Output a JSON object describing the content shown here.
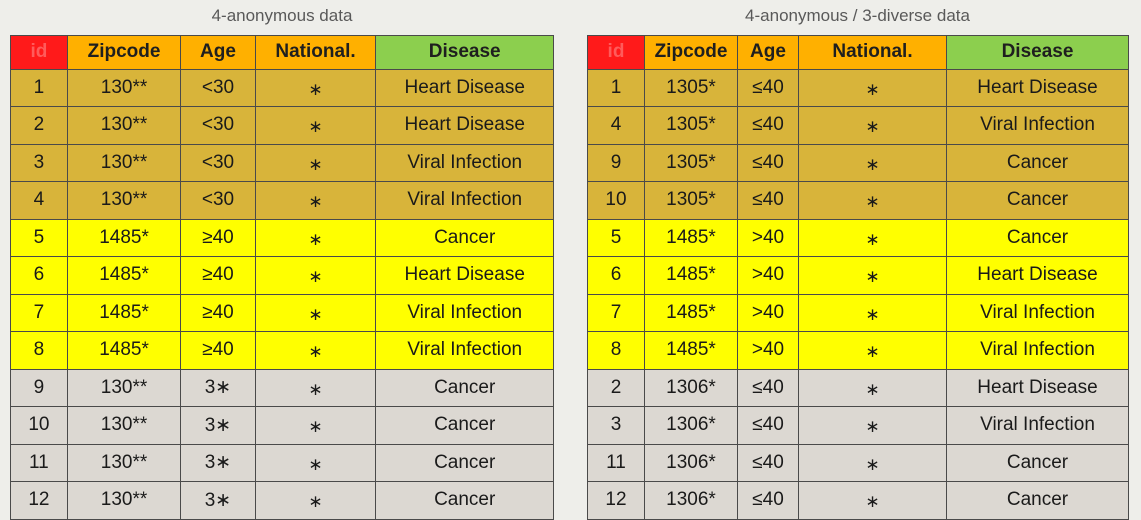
{
  "left_table": {
    "caption": "4-anonymous data",
    "headers": [
      "id",
      "Zipcode",
      "Age",
      "National.",
      "Disease"
    ],
    "rows": [
      {
        "group": "brown",
        "cells": [
          "1",
          "130**",
          "<30",
          "∗",
          "Heart Disease"
        ]
      },
      {
        "group": "brown",
        "cells": [
          "2",
          "130**",
          "<30",
          "∗",
          "Heart Disease"
        ]
      },
      {
        "group": "brown",
        "cells": [
          "3",
          "130**",
          "<30",
          "∗",
          "Viral Infection"
        ]
      },
      {
        "group": "brown",
        "cells": [
          "4",
          "130**",
          "<30",
          "∗",
          "Viral Infection"
        ]
      },
      {
        "group": "yellow",
        "cells": [
          "5",
          "1485*",
          "≥40",
          "∗",
          "Cancer"
        ]
      },
      {
        "group": "yellow",
        "cells": [
          "6",
          "1485*",
          "≥40",
          "∗",
          "Heart Disease"
        ]
      },
      {
        "group": "yellow",
        "cells": [
          "7",
          "1485*",
          "≥40",
          "∗",
          "Viral Infection"
        ]
      },
      {
        "group": "yellow",
        "cells": [
          "8",
          "1485*",
          "≥40",
          "∗",
          "Viral Infection"
        ]
      },
      {
        "group": "grey",
        "cells": [
          "9",
          "130**",
          "3∗",
          "∗",
          "Cancer"
        ]
      },
      {
        "group": "grey",
        "cells": [
          "10",
          "130**",
          "3∗",
          "∗",
          "Cancer"
        ]
      },
      {
        "group": "grey",
        "cells": [
          "11",
          "130**",
          "3∗",
          "∗",
          "Cancer"
        ]
      },
      {
        "group": "grey",
        "cells": [
          "12",
          "130**",
          "3∗",
          "∗",
          "Cancer"
        ]
      }
    ]
  },
  "right_table": {
    "caption": "4-anonymous / 3-diverse data",
    "headers": [
      "id",
      "Zipcode",
      "Age",
      "National.",
      "Disease"
    ],
    "rows": [
      {
        "group": "brown",
        "cells": [
          "1",
          "1305*",
          "≤40",
          "∗",
          "Heart Disease"
        ]
      },
      {
        "group": "brown",
        "cells": [
          "4",
          "1305*",
          "≤40",
          "∗",
          "Viral Infection"
        ]
      },
      {
        "group": "brown",
        "cells": [
          "9",
          "1305*",
          "≤40",
          "∗",
          "Cancer"
        ]
      },
      {
        "group": "brown",
        "cells": [
          "10",
          "1305*",
          "≤40",
          "∗",
          "Cancer"
        ]
      },
      {
        "group": "yellow",
        "cells": [
          "5",
          "1485*",
          ">40",
          "∗",
          "Cancer"
        ]
      },
      {
        "group": "yellow",
        "cells": [
          "6",
          "1485*",
          ">40",
          "∗",
          "Heart Disease"
        ]
      },
      {
        "group": "yellow",
        "cells": [
          "7",
          "1485*",
          ">40",
          "∗",
          "Viral Infection"
        ]
      },
      {
        "group": "yellow",
        "cells": [
          "8",
          "1485*",
          ">40",
          "∗",
          "Viral Infection"
        ]
      },
      {
        "group": "grey",
        "cells": [
          "2",
          "1306*",
          "≤40",
          "∗",
          "Heart Disease"
        ]
      },
      {
        "group": "grey",
        "cells": [
          "3",
          "1306*",
          "≤40",
          "∗",
          "Viral Infection"
        ]
      },
      {
        "group": "grey",
        "cells": [
          "11",
          "1306*",
          "≤40",
          "∗",
          "Cancer"
        ]
      },
      {
        "group": "grey",
        "cells": [
          "12",
          "1306*",
          "≤40",
          "∗",
          "Cancer"
        ]
      }
    ]
  },
  "colors": {
    "background": "#eeeeea",
    "header_id": "#ff1a1a",
    "header_mid": "#ffb000",
    "header_disease": "#8ccf4e",
    "group_brown": "#d8b43a",
    "group_yellow": "#ffff00",
    "group_grey": "#dcd8d2"
  }
}
